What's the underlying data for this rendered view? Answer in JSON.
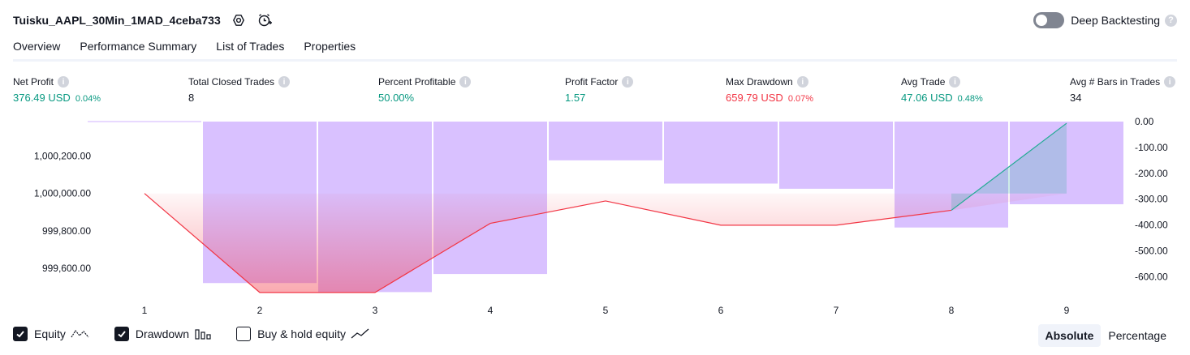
{
  "header": {
    "strategy_name": "Tuisku_AAPL_30Min_1MAD_4ceba733",
    "deep_backtesting_label": "Deep Backtesting"
  },
  "tabs": [
    "Overview",
    "Performance Summary",
    "List of Trades",
    "Properties"
  ],
  "metrics": [
    {
      "label": "Net Profit",
      "value": "376.49 USD",
      "pct": "0.04%",
      "color": "#089981"
    },
    {
      "label": "Total Closed Trades",
      "value": "8",
      "pct": "",
      "color": "#131722"
    },
    {
      "label": "Percent Profitable",
      "value": "50.00%",
      "pct": "",
      "color": "#089981"
    },
    {
      "label": "Profit Factor",
      "value": "1.57",
      "pct": "",
      "color": "#089981"
    },
    {
      "label": "Max Drawdown",
      "value": "659.79 USD",
      "pct": "0.07%",
      "color": "#f23645"
    },
    {
      "label": "Avg Trade",
      "value": "47.06 USD",
      "pct": "0.48%",
      "color": "#089981"
    },
    {
      "label": "Avg # Bars in Trades",
      "value": "34",
      "pct": "",
      "color": "#131722"
    }
  ],
  "chart_data": {
    "type": "line",
    "x": [
      1,
      2,
      3,
      4,
      5,
      6,
      7,
      8,
      9
    ],
    "equity_axis": {
      "ticks": [
        "1,000,200.00",
        "1,000,000.00",
        "999,800.00",
        "999,600.00"
      ],
      "tick_values": [
        1000200,
        1000000,
        999800,
        999600
      ],
      "range": [
        999465,
        1000385
      ]
    },
    "drawdown_axis": {
      "ticks": [
        "0.00",
        "-100.00",
        "-200.00",
        "-300.00",
        "-400.00",
        "-500.00",
        "-600.00"
      ],
      "tick_values": [
        0,
        -100,
        -200,
        -300,
        -400,
        -500,
        -600
      ],
      "range": [
        -665,
        0
      ]
    },
    "series": [
      {
        "name": "Equity",
        "color": "#f23645",
        "up_color": "#22ab94",
        "values": [
          1000000,
          999470,
          999470,
          999840,
          999960,
          999830,
          999830,
          999910,
          1000376
        ]
      },
      {
        "name": "Drawdown",
        "color": "#d1b3ff",
        "values": [
          0,
          -625,
          -660,
          -590,
          -150,
          -240,
          -260,
          -410,
          -320
        ]
      }
    ]
  },
  "legend": {
    "equity": "Equity",
    "drawdown": "Drawdown",
    "buy_hold": "Buy & hold equity"
  },
  "view_modes": {
    "absolute": "Absolute",
    "percentage": "Percentage"
  }
}
